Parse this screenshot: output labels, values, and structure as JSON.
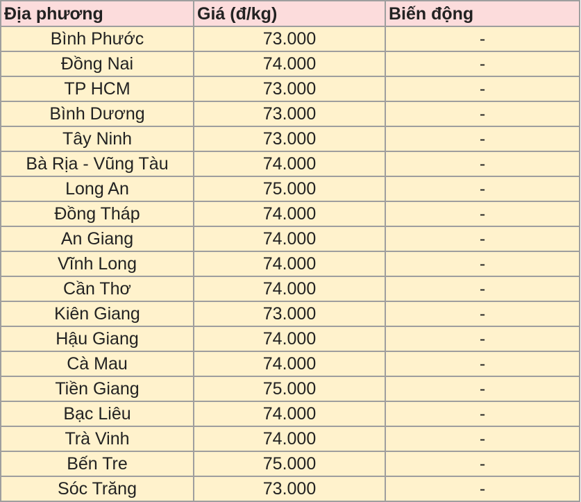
{
  "table": {
    "headers": [
      "Địa phương",
      "Giá (đ/kg)",
      "Biến động"
    ],
    "rows": [
      [
        "Bình Phước",
        "73.000",
        "-"
      ],
      [
        "Đồng Nai",
        "74.000",
        "-"
      ],
      [
        "TP HCM",
        "73.000",
        "-"
      ],
      [
        "Bình Dương",
        "73.000",
        "-"
      ],
      [
        "Tây Ninh",
        "73.000",
        "-"
      ],
      [
        "Bà Rịa - Vũng Tàu",
        "74.000",
        "-"
      ],
      [
        "Long An",
        "75.000",
        "-"
      ],
      [
        "Đồng Tháp",
        "74.000",
        "-"
      ],
      [
        "An Giang",
        "74.000",
        "-"
      ],
      [
        "Vĩnh Long",
        "74.000",
        "-"
      ],
      [
        "Cần Thơ",
        "74.000",
        "-"
      ],
      [
        "Kiên Giang",
        "73.000",
        "-"
      ],
      [
        "Hậu Giang",
        "74.000",
        "-"
      ],
      [
        "Cà Mau",
        "74.000",
        "-"
      ],
      [
        "Tiền Giang",
        "75.000",
        "-"
      ],
      [
        "Bạc Liêu",
        "74.000",
        "-"
      ],
      [
        "Trà Vinh",
        "74.000",
        "-"
      ],
      [
        "Bến Tre",
        "75.000",
        "-"
      ],
      [
        "Sóc Trăng",
        "73.000",
        "-"
      ]
    ]
  },
  "colors": {
    "header_bg": "#fcdcdc",
    "row_bg": "#fff2cc",
    "border": "#9e9e9e"
  }
}
